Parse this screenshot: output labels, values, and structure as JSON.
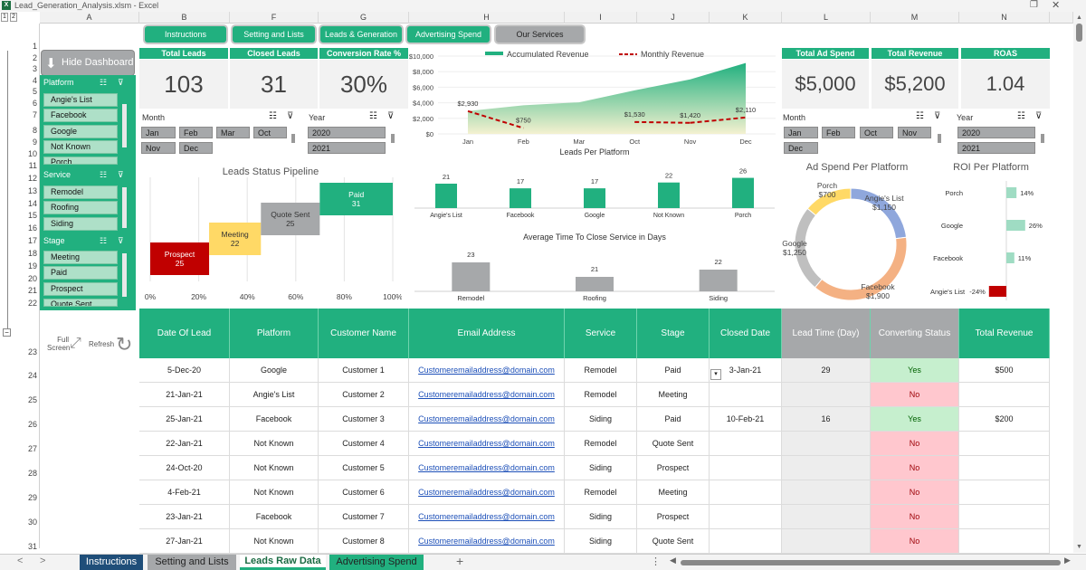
{
  "app": {
    "title": "Lead_Generation_Analysis.xlsm - Excel"
  },
  "grid": {
    "columns": [
      "A",
      "B",
      "F",
      "G",
      "H",
      "I",
      "J",
      "K",
      "L",
      "M",
      "N"
    ],
    "rows": [
      "1",
      "2",
      "3",
      "4",
      "5",
      "6",
      "7",
      "8",
      "9",
      "10",
      "11",
      "12",
      "13",
      "14",
      "15",
      "16",
      "17",
      "18",
      "19",
      "20",
      "21",
      "22",
      "23",
      "24",
      "25",
      "26",
      "27",
      "28",
      "29",
      "30",
      "31"
    ],
    "outline_levels": [
      "1",
      "2"
    ]
  },
  "nav": {
    "instructions": "Instructions",
    "setting": "Setting and Lists",
    "leads": "Leads & Generation",
    "adspend": "Advertising Spend",
    "services": "Our Services"
  },
  "kpi": {
    "total_leads_label": "Total Leads",
    "total_leads": "103",
    "closed_leads_label": "Closed Leads",
    "closed_leads": "31",
    "conversion_label": "Conversion Rate %",
    "conversion": "30%",
    "ad_spend_label": "Total Ad Spend",
    "ad_spend": "$5,000",
    "revenue_label": "Total Revenue",
    "revenue": "$5,200",
    "roas_label": "ROAS",
    "roas": "1.04"
  },
  "sidebar": {
    "hide_dashboard": "Hide Dashboard",
    "platform_label": "Platform",
    "platform_items": [
      "Angie's List",
      "Facebook",
      "Google",
      "Not Known",
      "Porch"
    ],
    "service_label": "Service",
    "service_items": [
      "Remodel",
      "Roofing",
      "Siding"
    ],
    "stage_label": "Stage",
    "stage_items": [
      "Meeting",
      "Paid",
      "Prospect",
      "Quote Sent"
    ],
    "full_screen": "Full Screen",
    "refresh": "Refresh"
  },
  "slicers_left": {
    "month_label": "Month",
    "months": [
      "Jan",
      "Feb",
      "Mar",
      "Oct",
      "Nov",
      "Dec"
    ],
    "year_label": "Year",
    "years": [
      "2020",
      "2021"
    ]
  },
  "slicers_right": {
    "month_label": "Month",
    "months": [
      "Jan",
      "Feb",
      "Oct",
      "Nov",
      "Dec"
    ],
    "year_label": "Year",
    "years": [
      "2020",
      "2021"
    ]
  },
  "colors": {
    "accent": "#21b07f",
    "gray": "#a6a8aa",
    "red": "#c00000",
    "yellow": "#ffd966",
    "light_green": "#c6efce",
    "light_red": "#ffc7ce"
  },
  "chart_data": [
    {
      "type": "bar",
      "title": "Leads Status Pipeline",
      "orientation": "horizontal-waterfall",
      "categories": [
        "Prospect",
        "Meeting",
        "Quote Sent",
        "Paid"
      ],
      "values": [
        25,
        22,
        25,
        31
      ],
      "colors": [
        "#c00000",
        "#ffd966",
        "#a6a8aa",
        "#21b07f"
      ],
      "x_ticks": [
        "0%",
        "20%",
        "40%",
        "60%",
        "80%",
        "100%"
      ],
      "xlim": [
        0,
        1
      ]
    },
    {
      "type": "area",
      "legend": [
        "Accumulated Revenue",
        "Monthly Revenue"
      ],
      "legend_position": "top",
      "categories": [
        "Jan",
        "Feb",
        "Mar",
        "Oct",
        "Nov",
        "Dec"
      ],
      "y_ticks": [
        "$0",
        "$2,000",
        "$4,000",
        "$6,000",
        "$8,000",
        "$10,000"
      ],
      "ylim": [
        0,
        10000
      ],
      "series": [
        {
          "name": "Accumulated Revenue",
          "values": [
            2930,
            3680,
            4060,
            5590,
            7010,
            9120
          ]
        },
        {
          "name": "Monthly Revenue",
          "values": [
            2930,
            750,
            null,
            1530,
            1420,
            2110
          ]
        }
      ],
      "labels": [
        "$2,930",
        "$750",
        "$1,530",
        "$1,420",
        "$2,110"
      ]
    },
    {
      "type": "bar",
      "title": "Leads Per Platform",
      "categories": [
        "Angie's List",
        "Facebook",
        "Google",
        "Not Known",
        "Porch"
      ],
      "values": [
        21,
        17,
        17,
        22,
        26
      ],
      "ylim": [
        0,
        28
      ]
    },
    {
      "type": "bar",
      "title": "Average Time To Close Service in Days",
      "categories": [
        "Remodel",
        "Roofing",
        "Siding"
      ],
      "values": [
        23,
        21,
        22
      ],
      "ylim": [
        19,
        24
      ]
    },
    {
      "type": "pie",
      "title": "Ad Spend Per Platform",
      "categories": [
        "Angie's List",
        "Facebook",
        "Google",
        "Porch"
      ],
      "values": [
        1150,
        1900,
        1250,
        700
      ],
      "labels": [
        "Angie's List\n$1,150",
        "Facebook\n$1,900",
        "Google\n$1,250",
        "Porch\n$700"
      ],
      "colors": [
        "#8fa7dc",
        "#f4b183",
        "#bfbfbf",
        "#ffd966"
      ]
    },
    {
      "type": "bar",
      "title": "ROI Per Platform",
      "orientation": "horizontal",
      "categories": [
        "Porch",
        "Google",
        "Facebook",
        "Angie's List"
      ],
      "values": [
        14,
        26,
        11,
        -24
      ],
      "labels": [
        "14%",
        "26%",
        "11%",
        "-24%"
      ],
      "colors": [
        "#9fdcc3",
        "#9fdcc3",
        "#9fdcc3",
        "#c00000"
      ]
    }
  ],
  "table": {
    "headers": [
      "Date Of Lead",
      "Platform",
      "Customer Name",
      "Email Address",
      "Service",
      "Stage",
      "Closed Date",
      "Lead Time (Day)",
      "Converting Status",
      "Total Revenue"
    ],
    "rows": [
      [
        "5-Dec-20",
        "Google",
        "Customer 1",
        "Customeremailaddress@domain.com",
        "Remodel",
        "Paid",
        "3-Jan-21",
        "29",
        "Yes",
        "$500"
      ],
      [
        "21-Jan-21",
        "Angie's List",
        "Customer 2",
        "Customeremailaddress@domain.com",
        "Remodel",
        "Meeting",
        "",
        "",
        "No",
        ""
      ],
      [
        "25-Jan-21",
        "Facebook",
        "Customer 3",
        "Customeremailaddress@domain.com",
        "Siding",
        "Paid",
        "10-Feb-21",
        "16",
        "Yes",
        "$200"
      ],
      [
        "22-Jan-21",
        "Not Known",
        "Customer 4",
        "Customeremailaddress@domain.com",
        "Remodel",
        "Quote Sent",
        "",
        "",
        "No",
        ""
      ],
      [
        "24-Oct-20",
        "Not Known",
        "Customer 5",
        "Customeremailaddress@domain.com",
        "Siding",
        "Prospect",
        "",
        "",
        "No",
        ""
      ],
      [
        "4-Feb-21",
        "Not Known",
        "Customer 6",
        "Customeremailaddress@domain.com",
        "Remodel",
        "Meeting",
        "",
        "",
        "No",
        ""
      ],
      [
        "23-Jan-21",
        "Facebook",
        "Customer 7",
        "Customeremailaddress@domain.com",
        "Siding",
        "Prospect",
        "",
        "",
        "No",
        ""
      ],
      [
        "27-Jan-21",
        "Not Known",
        "Customer 8",
        "Customeremailaddress@domain.com",
        "Siding",
        "Quote Sent",
        "",
        "",
        "No",
        ""
      ]
    ]
  },
  "sheet_tabs": [
    "Instructions",
    "Setting and Lists",
    "Leads Raw Data",
    "Advertising Spend"
  ],
  "sheet_tabs_nav": {
    "prev": "<",
    "next": ">",
    "add": "+"
  }
}
